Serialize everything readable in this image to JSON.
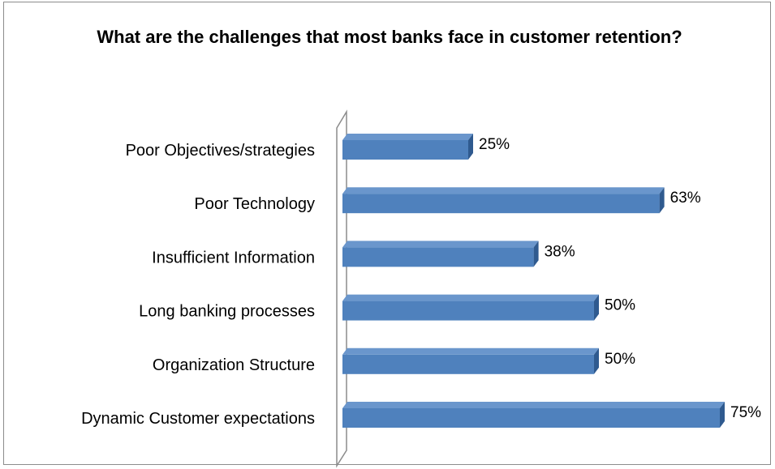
{
  "chart_data": {
    "type": "bar",
    "orientation": "horizontal",
    "title": "What are the challenges that most banks face in customer retention?",
    "categories": [
      "Poor Objectives/strategies",
      "Poor Technology",
      "Insufficient Information",
      "Long banking processes",
      "Organization Structure",
      "Dynamic Customer expectations"
    ],
    "values": [
      25,
      63,
      38,
      50,
      50,
      75
    ],
    "value_labels": [
      "25%",
      "63%",
      "38%",
      "50%",
      "50%",
      "75%"
    ],
    "unit": "%",
    "xlim": [
      0,
      80
    ],
    "grid": false,
    "legend": "none",
    "style": "3d",
    "colors": {
      "bar_front": "#4f81bd",
      "bar_top": "#6a96cc",
      "bar_side": "#2f5a8f"
    }
  }
}
